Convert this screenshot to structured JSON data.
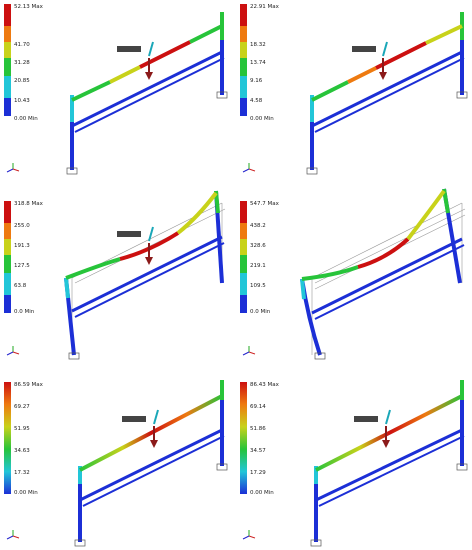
{
  "panels": [
    {
      "id": "p1",
      "max": "52.13 Max",
      "t1": "41.70",
      "t2": "31.28",
      "t3": "20.85",
      "t4": "10.43",
      "min": "0.00 Min",
      "colors": [
        "#cc1010",
        "#ee7a10",
        "#c8d21a",
        "#27c43a",
        "#22c6d8",
        "#1c2fd6"
      ]
    },
    {
      "id": "p2",
      "max": "22.91 Max",
      "t1": "18.32",
      "t2": "13.74",
      "t3": "9.16",
      "t4": "4.58",
      "min": "0.00 Min",
      "colors": [
        "#cc1010",
        "#ee7a10",
        "#c8d21a",
        "#27c43a",
        "#22c6d8",
        "#1c2fd6"
      ]
    },
    {
      "id": "p3",
      "max": "318.8 Max",
      "t1": "255.0",
      "t2": "191.3",
      "t3": "127.5",
      "t4": "63.8",
      "min": "0.0 Min",
      "colors": [
        "#cc1010",
        "#ee7a10",
        "#c8d21a",
        "#27c43a",
        "#22c6d8",
        "#1c2fd6"
      ]
    },
    {
      "id": "p4",
      "max": "547.7 Max",
      "t1": "438.2",
      "t2": "328.6",
      "t3": "219.1",
      "t4": "109.5",
      "min": "0.0 Min",
      "colors": [
        "#cc1010",
        "#ee7a10",
        "#c8d21a",
        "#27c43a",
        "#22c6d8",
        "#1c2fd6"
      ]
    },
    {
      "id": "p5",
      "max": "86.59 Max",
      "t1": "69.27",
      "t2": "51.95",
      "t3": "34.63",
      "t4": "17.32",
      "min": "0.00 Min",
      "colors": [
        "#cc1010",
        "#ee7a10",
        "#c8d21a",
        "#27c43a",
        "#22c6d8",
        "#1c2fd6"
      ]
    },
    {
      "id": "p6",
      "max": "86.43 Max",
      "t1": "69.14",
      "t2": "51.86",
      "t3": "34.57",
      "t4": "17.29",
      "min": "0.00 Min",
      "colors": [
        "#cc1010",
        "#ee7a10",
        "#c8d21a",
        "#27c43a",
        "#22c6d8",
        "#1c2fd6"
      ]
    }
  ]
}
